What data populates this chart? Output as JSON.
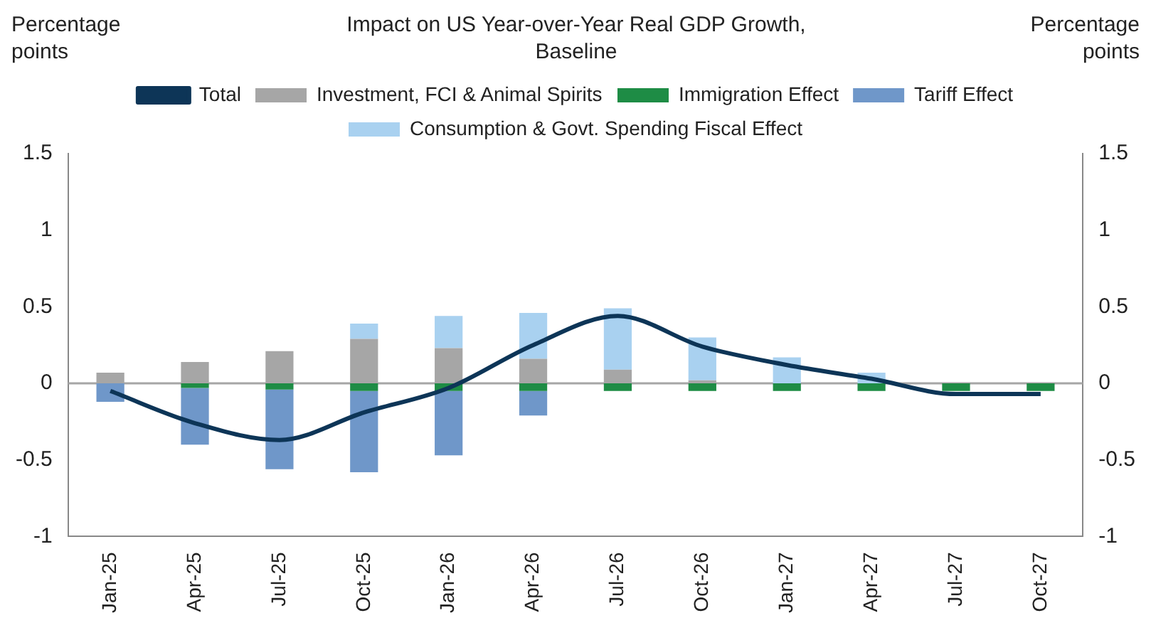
{
  "chart_data": {
    "type": "bar",
    "stacked": true,
    "title": "Impact on US Year-over-Year Real GDP Growth, Baseline",
    "ylabel": "Percentage points",
    "y2label": "Percentage points",
    "categories": [
      "Jan-25",
      "Apr-25",
      "Jul-25",
      "Oct-25",
      "Jan-26",
      "Apr-26",
      "Jul-26",
      "Oct-26",
      "Jan-27",
      "Apr-27",
      "Jul-27",
      "Oct-27"
    ],
    "series": [
      {
        "name": "Investment, FCI & Animal Spirits",
        "color": "#a6a6a6",
        "values": [
          0.07,
          0.14,
          0.21,
          0.29,
          0.23,
          0.16,
          0.09,
          0.02,
          0,
          0,
          0,
          0
        ]
      },
      {
        "name": "Immigration Effect",
        "color": "#1e8c45",
        "values": [
          0,
          -0.03,
          -0.04,
          -0.05,
          -0.05,
          -0.05,
          -0.05,
          -0.05,
          -0.05,
          -0.05,
          -0.05,
          -0.05
        ]
      },
      {
        "name": "Tariff Effect",
        "color": "#6f97c9",
        "values": [
          -0.12,
          -0.37,
          -0.52,
          -0.53,
          -0.42,
          -0.16,
          0,
          0,
          0,
          0,
          0,
          0
        ]
      },
      {
        "name": "Consumption & Govt. Spending Fiscal Effect",
        "color": "#a9d1f0",
        "values": [
          0,
          0,
          0,
          0.1,
          0.21,
          0.3,
          0.4,
          0.28,
          0.17,
          0.07,
          0,
          0
        ]
      },
      {
        "name": "Total",
        "type": "line",
        "color": "#0d3557",
        "values": [
          -0.05,
          -0.26,
          -0.37,
          -0.19,
          -0.03,
          0.25,
          0.44,
          0.24,
          0.12,
          0.03,
          -0.07,
          -0.07
        ]
      }
    ],
    "ylim": [
      -1,
      1.5
    ],
    "yticks": [
      -1,
      -0.5,
      0,
      0.5,
      1,
      1.5
    ],
    "y2lim": [
      -1,
      1.5
    ],
    "y2ticks": [
      -1,
      -0.5,
      0,
      0.5,
      1,
      1.5
    ],
    "ref_lines": [
      {
        "axis": "y",
        "value": 0,
        "color": "#a6a6a6"
      }
    ],
    "grid": false,
    "legend": "top",
    "marker": "none"
  }
}
